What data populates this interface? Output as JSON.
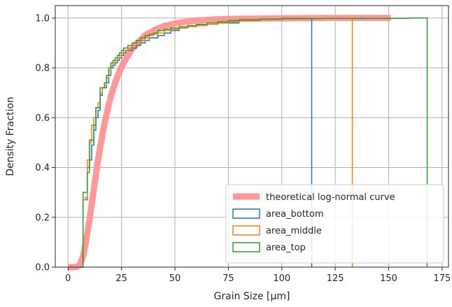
{
  "chart_data": {
    "type": "line",
    "title": "",
    "xlabel": "Grain Size [µm]",
    "ylabel": "Density Fraction",
    "xlim": [
      -6,
      178
    ],
    "ylim": [
      0,
      1.05
    ],
    "grid": true,
    "legend_position": "lower-right",
    "x_ticks": [
      {
        "value": 0,
        "label": "0"
      },
      {
        "value": 25,
        "label": "25"
      },
      {
        "value": 50,
        "label": "50"
      },
      {
        "value": 75,
        "label": "75"
      },
      {
        "value": 100,
        "label": "100"
      },
      {
        "value": 125,
        "label": "125"
      },
      {
        "value": 150,
        "label": "150"
      },
      {
        "value": 175,
        "label": "175"
      }
    ],
    "y_ticks": [
      {
        "value": 0,
        "label": "0.0"
      },
      {
        "value": 0.2,
        "label": "0.2"
      },
      {
        "value": 0.4,
        "label": "0.4"
      },
      {
        "value": 0.6,
        "label": "0.6"
      },
      {
        "value": 0.8,
        "label": "0.8"
      },
      {
        "value": 1.0,
        "label": "1.0"
      }
    ],
    "theoretical": {
      "name": "theoretical log-normal curve",
      "color": "#ff9896",
      "x": [
        0,
        2,
        4,
        5,
        6,
        7,
        8,
        9,
        10,
        11,
        12,
        13,
        14,
        15,
        16,
        18,
        20,
        22,
        24,
        26,
        28,
        30,
        33,
        36,
        40,
        45,
        50,
        55,
        60,
        70,
        80,
        90,
        100,
        120,
        140,
        151
      ],
      "y": [
        0,
        0,
        0.001,
        0.005,
        0.02,
        0.045,
        0.085,
        0.135,
        0.19,
        0.25,
        0.31,
        0.37,
        0.43,
        0.48,
        0.53,
        0.615,
        0.685,
        0.74,
        0.785,
        0.82,
        0.85,
        0.875,
        0.905,
        0.93,
        0.95,
        0.968,
        0.978,
        0.985,
        0.99,
        0.995,
        0.997,
        0.998,
        0.999,
        1.0,
        1.0,
        1.0
      ]
    },
    "series": [
      {
        "name": "area_bottom",
        "color": "#1f77b4",
        "x": [
          6,
          7,
          8,
          9,
          10,
          11,
          12,
          13,
          14,
          15,
          16,
          17,
          18,
          19,
          20,
          21,
          22,
          23,
          24,
          25,
          26,
          27,
          28,
          30,
          32,
          34,
          36,
          38,
          40,
          42,
          45,
          48,
          52,
          56,
          60,
          65,
          70,
          80,
          90,
          100,
          114
        ],
        "y": [
          0.0,
          0.27,
          0.27,
          0.4,
          0.43,
          0.49,
          0.55,
          0.6,
          0.63,
          0.69,
          0.72,
          0.72,
          0.74,
          0.77,
          0.8,
          0.81,
          0.82,
          0.83,
          0.84,
          0.85,
          0.86,
          0.87,
          0.87,
          0.88,
          0.89,
          0.9,
          0.91,
          0.92,
          0.92,
          0.93,
          0.94,
          0.95,
          0.96,
          0.965,
          0.97,
          0.975,
          0.98,
          0.99,
          0.995,
          0.998,
          1.0
        ]
      },
      {
        "name": "area_middle",
        "color": "#ff7f0e",
        "x": [
          6,
          7,
          8,
          9,
          10,
          11,
          12,
          13,
          14,
          15,
          16,
          17,
          18,
          19,
          20,
          21,
          22,
          23,
          24,
          25,
          26,
          27,
          28,
          30,
          32,
          34,
          36,
          38,
          40,
          42,
          45,
          48,
          52,
          56,
          60,
          65,
          70,
          75,
          80,
          90,
          100,
          115,
          133
        ],
        "y": [
          0.0,
          0.27,
          0.28,
          0.43,
          0.5,
          0.57,
          0.6,
          0.64,
          0.66,
          0.7,
          0.72,
          0.73,
          0.76,
          0.79,
          0.81,
          0.82,
          0.83,
          0.84,
          0.85,
          0.86,
          0.87,
          0.87,
          0.88,
          0.89,
          0.9,
          0.91,
          0.92,
          0.93,
          0.935,
          0.94,
          0.95,
          0.955,
          0.96,
          0.965,
          0.97,
          0.975,
          0.98,
          0.985,
          0.99,
          0.995,
          0.997,
          0.999,
          1.0
        ]
      },
      {
        "name": "area_top",
        "color": "#2ca02c",
        "x": [
          6,
          7,
          8,
          9,
          10,
          11,
          12,
          13,
          14,
          15,
          16,
          17,
          18,
          19,
          20,
          21,
          22,
          23,
          24,
          25,
          26,
          27,
          28,
          30,
          32,
          34,
          36,
          38,
          40,
          42,
          45,
          48,
          52,
          56,
          60,
          65,
          70,
          75,
          80,
          90,
          100,
          120,
          140,
          160,
          168
        ],
        "y": [
          0.0,
          0.3,
          0.3,
          0.38,
          0.51,
          0.51,
          0.57,
          0.64,
          0.64,
          0.72,
          0.72,
          0.74,
          0.77,
          0.8,
          0.82,
          0.83,
          0.84,
          0.85,
          0.86,
          0.87,
          0.88,
          0.88,
          0.89,
          0.9,
          0.91,
          0.92,
          0.93,
          0.935,
          0.94,
          0.95,
          0.955,
          0.96,
          0.965,
          0.97,
          0.975,
          0.98,
          0.985,
          0.99,
          0.993,
          0.996,
          0.998,
          0.999,
          0.999,
          1.0,
          1.0
        ]
      }
    ]
  }
}
